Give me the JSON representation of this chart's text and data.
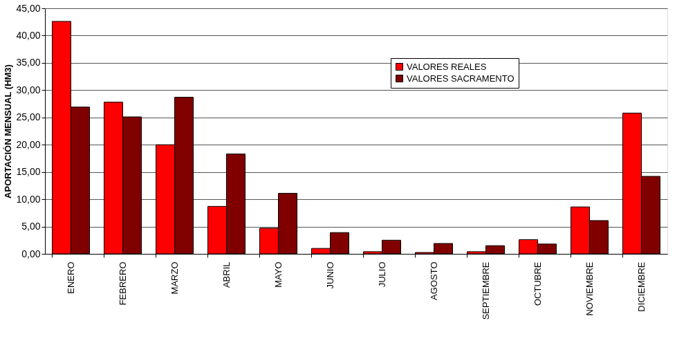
{
  "chart_data": {
    "type": "bar",
    "ylabel": "APORTACIÓN MENSUAL (HM3)",
    "categories": [
      "ENERO",
      "FEBRERO",
      "MARZO",
      "ABRIL",
      "MAYO",
      "JUNIO",
      "JULIO",
      "AGOSTO",
      "SEPTIEMBRE",
      "OCTUBRE",
      "NOVIEMBRE",
      "DICIEMBRE"
    ],
    "series": [
      {
        "name": "VALORES REALES",
        "color": "#ff0000",
        "values": [
          42.6,
          27.8,
          20.0,
          8.7,
          4.7,
          1.0,
          0.4,
          0.25,
          0.4,
          2.6,
          8.6,
          25.8
        ]
      },
      {
        "name": "VALORES SACRAMENTO",
        "color": "#800000",
        "values": [
          26.9,
          25.1,
          28.7,
          18.3,
          11.1,
          3.9,
          2.5,
          1.9,
          1.5,
          1.8,
          6.1,
          14.2
        ]
      }
    ],
    "ylim": [
      0,
      45
    ],
    "yticks": [
      {
        "value": 0,
        "label": "0,00"
      },
      {
        "value": 5,
        "label": "5,00"
      },
      {
        "value": 10,
        "label": "10,00"
      },
      {
        "value": 15,
        "label": "15,00"
      },
      {
        "value": 20,
        "label": "20,00"
      },
      {
        "value": 25,
        "label": "25,00"
      },
      {
        "value": 30,
        "label": "30,00"
      },
      {
        "value": 35,
        "label": "35,00"
      },
      {
        "value": 40,
        "label": "40,00"
      },
      {
        "value": 45,
        "label": "45,00"
      }
    ],
    "grid": "y",
    "legend": "top"
  }
}
